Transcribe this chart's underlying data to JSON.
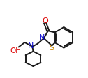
{
  "background_color": "#ffffff",
  "line_color": "#1a1a1a",
  "bond_width": 1.4,
  "figsize": [
    1.26,
    1.12
  ],
  "dpi": 100,
  "xlim": [
    0,
    1
  ],
  "ylim": [
    0,
    1
  ]
}
